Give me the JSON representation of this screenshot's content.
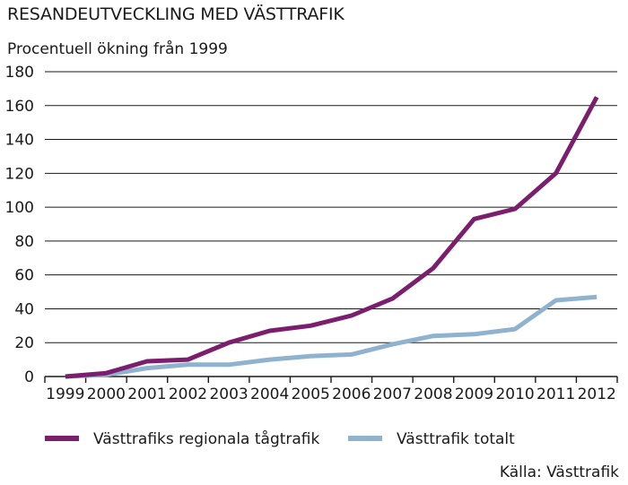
{
  "chart_data": {
    "type": "line",
    "title": "RESANDEUTVECKLING MED VÄSTTRAFIK",
    "subtitle": "Procentuell ökning från 1999",
    "source": "Källa: Västtrafik",
    "x": [
      "1999",
      "2000",
      "2001",
      "2002",
      "2003",
      "2004",
      "2005",
      "2006",
      "2007",
      "2008",
      "2009",
      "2010",
      "2011",
      "2012"
    ],
    "ylim": [
      0,
      180
    ],
    "yticks": [
      "0",
      "20",
      "40",
      "60",
      "80",
      "100",
      "120",
      "140",
      "160",
      "180"
    ],
    "grid": true,
    "legend_position": "bottom",
    "series": [
      {
        "name": "Västtrafiks regionala tågtrafik",
        "color": "#7b1e6e",
        "values": [
          0,
          2,
          9,
          10,
          20,
          27,
          30,
          36,
          46,
          64,
          93,
          99,
          120,
          165
        ]
      },
      {
        "name": "Västtrafik totalt",
        "color": "#8fb2cf",
        "values": [
          0,
          1,
          5,
          7,
          7,
          10,
          12,
          13,
          19,
          24,
          25,
          28,
          45,
          47
        ]
      }
    ]
  }
}
